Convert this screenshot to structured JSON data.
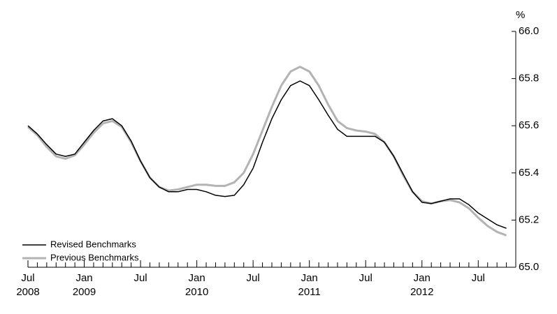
{
  "chart_data": {
    "type": "line",
    "y_unit": "%",
    "categories": [
      "Jul",
      null,
      null,
      null,
      null,
      null,
      "Jan",
      null,
      null,
      null,
      null,
      null,
      "Jul",
      null,
      null,
      null,
      null,
      null,
      "Jan",
      null,
      null,
      null,
      null,
      null,
      "Jul",
      null,
      null,
      null,
      null,
      null,
      "Jan",
      null,
      null,
      null,
      null,
      null,
      "Jul",
      null,
      null,
      null,
      null,
      null,
      "Jan",
      null,
      null,
      null,
      null,
      null,
      "Jul",
      null,
      null,
      null,
      null
    ],
    "years": [
      "2008",
      "2009",
      "2010",
      "2011",
      "2012"
    ],
    "series": [
      {
        "name": "Revised Benchmarks",
        "color": "#000000",
        "values": [
          65.6,
          65.565,
          65.52,
          65.48,
          65.47,
          65.48,
          65.53,
          65.58,
          65.62,
          65.63,
          65.6,
          65.535,
          65.45,
          65.38,
          65.34,
          65.32,
          65.32,
          65.33,
          65.33,
          65.32,
          65.305,
          65.3,
          65.305,
          65.35,
          65.42,
          65.53,
          65.63,
          65.71,
          65.77,
          65.79,
          65.77,
          65.71,
          65.645,
          65.585,
          65.555,
          65.555,
          65.555,
          65.555,
          65.53,
          65.47,
          65.395,
          65.32,
          65.275,
          65.27,
          65.28,
          65.29,
          65.29,
          65.265,
          65.23,
          65.205,
          65.18,
          65.165,
          null
        ]
      },
      {
        "name": "Previous Benchmarks",
        "color": "#b3b3b3",
        "values": [
          65.595,
          65.56,
          65.51,
          65.47,
          65.46,
          65.475,
          65.52,
          65.57,
          65.61,
          65.62,
          65.595,
          65.53,
          65.45,
          65.38,
          65.34,
          65.325,
          65.33,
          65.34,
          65.35,
          65.35,
          65.345,
          65.345,
          65.36,
          65.4,
          65.48,
          65.58,
          65.68,
          65.77,
          65.83,
          65.85,
          65.83,
          65.77,
          65.69,
          65.62,
          65.59,
          65.58,
          65.575,
          65.565,
          65.53,
          65.47,
          65.39,
          65.32,
          65.28,
          65.27,
          65.28,
          65.285,
          65.275,
          65.25,
          65.21,
          65.175,
          65.15,
          65.135,
          null
        ]
      }
    ],
    "ylim": [
      65,
      66
    ],
    "yticks": [
      {
        "value": 65,
        "label": "65.0"
      },
      {
        "value": 65.2,
        "label": "65.2"
      },
      {
        "value": 65.4,
        "label": "65.4"
      },
      {
        "value": 65.6,
        "label": "65.6"
      },
      {
        "value": 65.8,
        "label": "65.8"
      },
      {
        "value": 66,
        "label": "66.0"
      }
    ],
    "legend": "lower left"
  }
}
